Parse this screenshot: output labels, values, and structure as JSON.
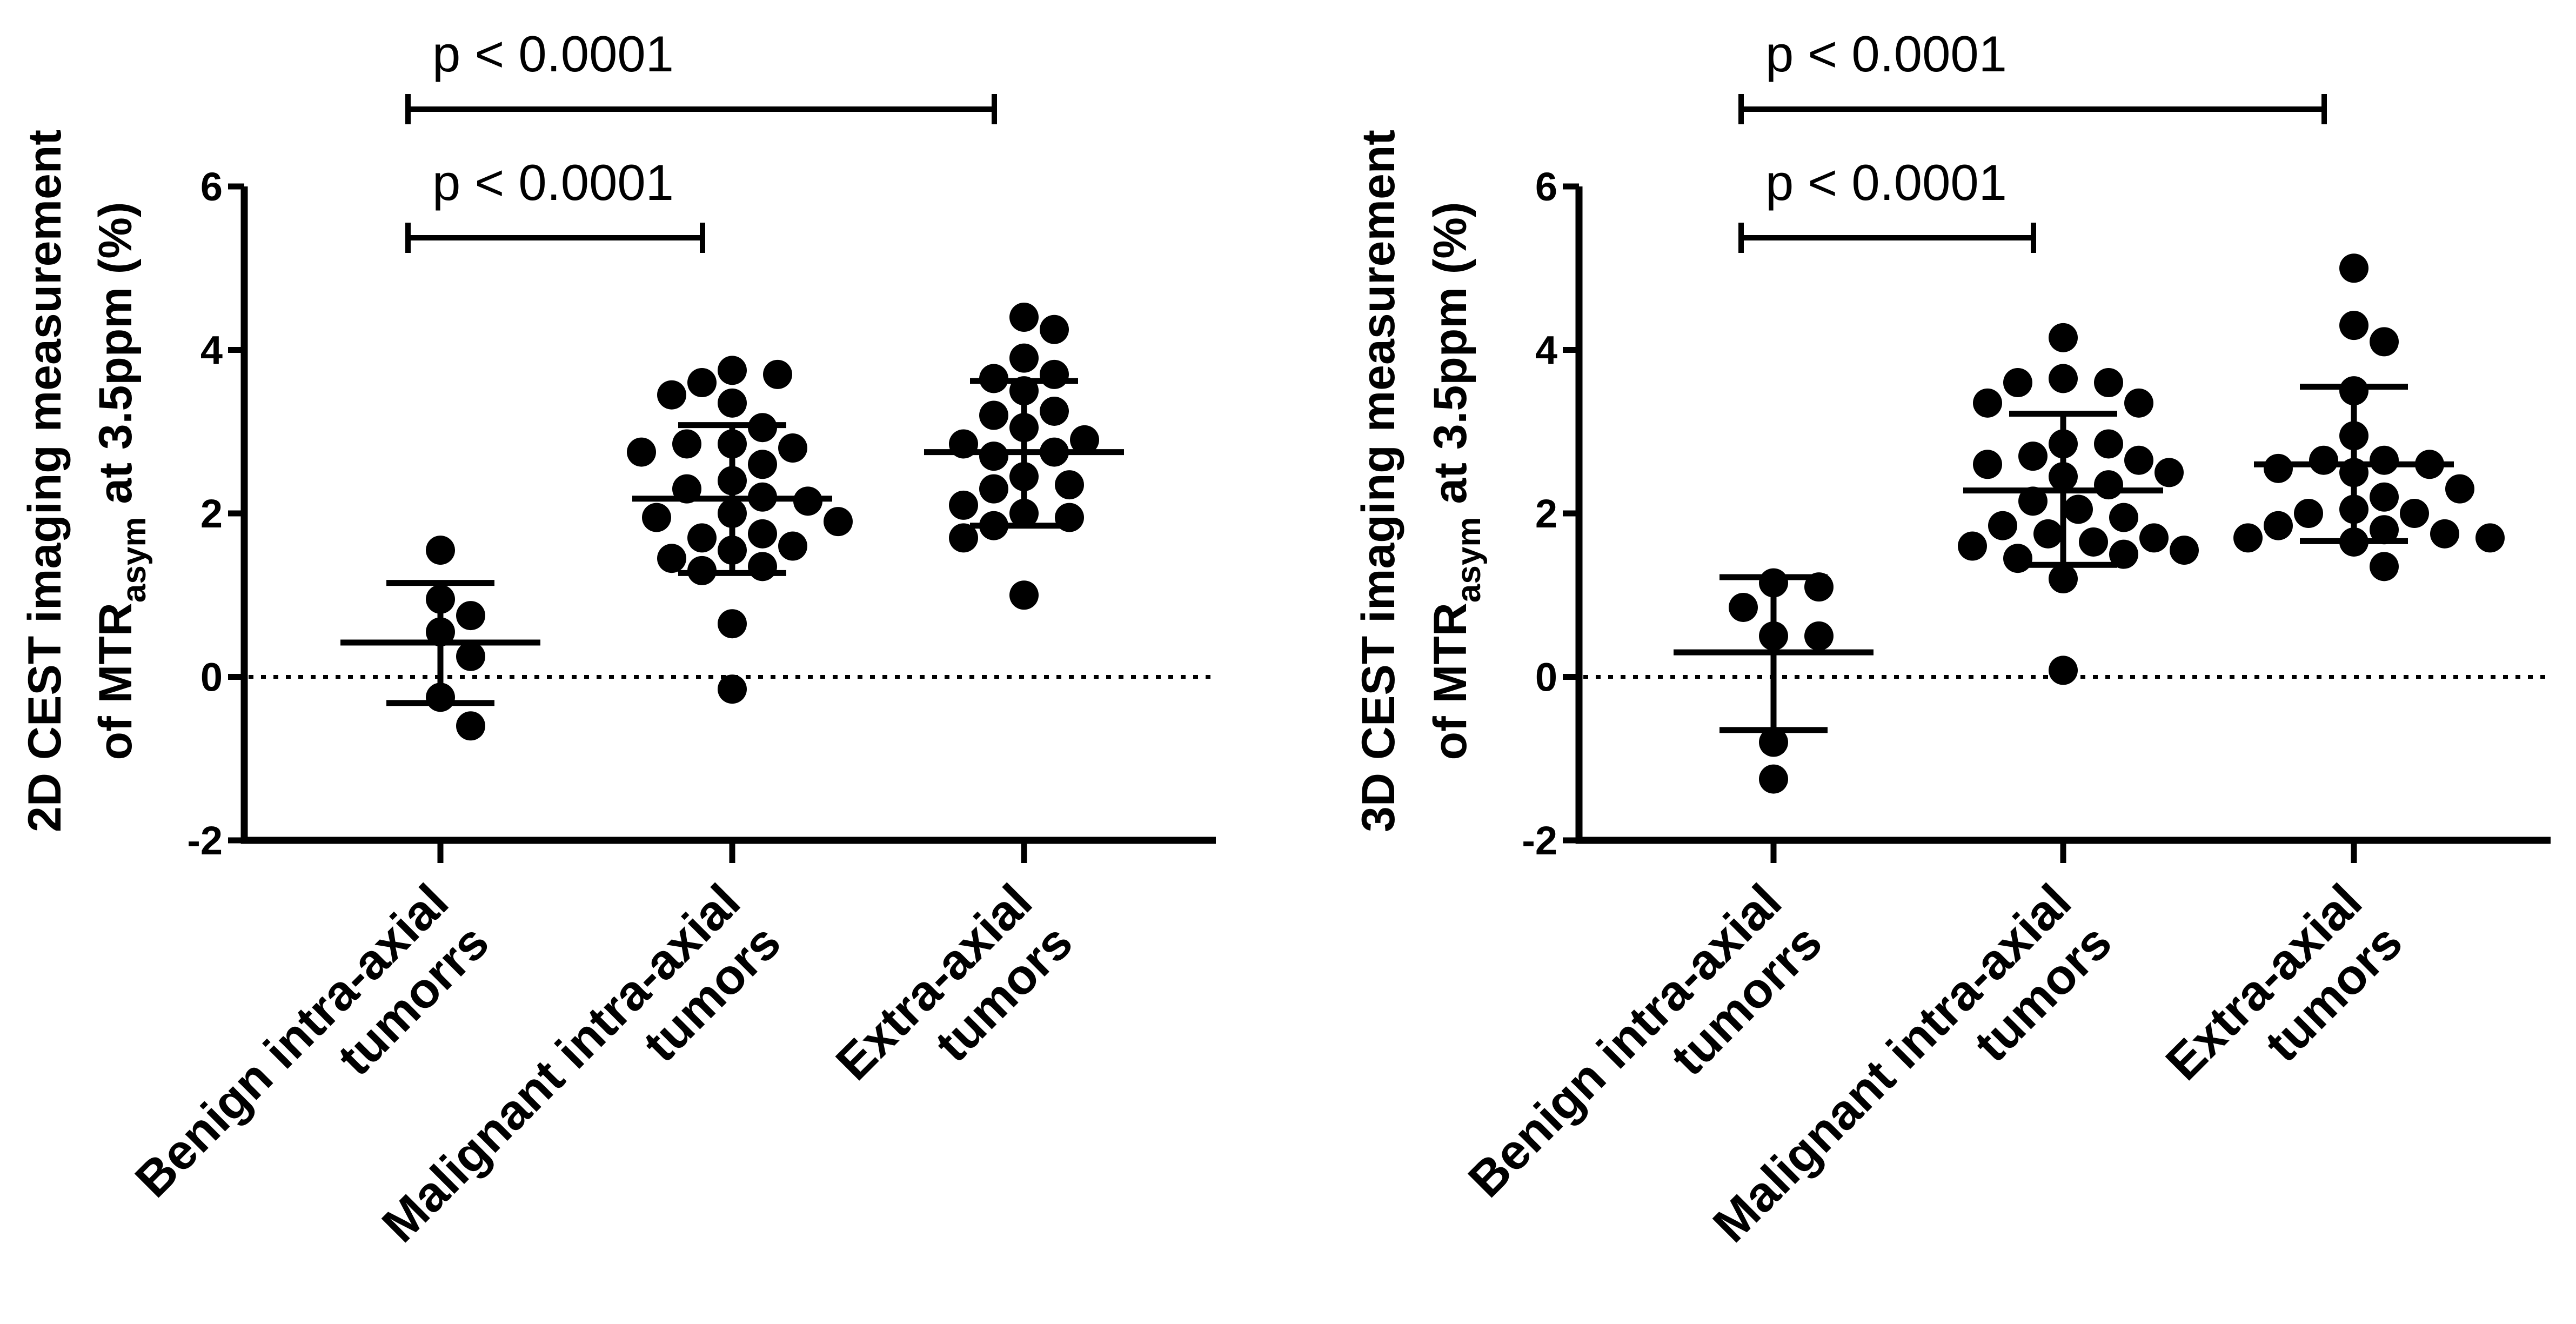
{
  "chart_data": [
    {
      "type": "scatter",
      "y_axis_title": {
        "line1": "2D CEST imaging measurement",
        "line2_prefix": "of MTR",
        "line2_subscript": "asym",
        "line2_suffix": " at 3.5ppm (%)"
      },
      "ylim": [
        -2,
        6
      ],
      "yticks": [
        "6",
        "4",
        "2",
        "0",
        "-2"
      ],
      "ytick_values": [
        6,
        4,
        2,
        0,
        -2
      ],
      "reference_line": 0,
      "categories": [
        {
          "line1": "Benign intra-axial",
          "line2": "tumorrs"
        },
        {
          "line1": "Malignant intra-axial",
          "line2": "tumors"
        },
        {
          "line1": "Extra-axial",
          "line2": "tumors"
        }
      ],
      "series": [
        {
          "points": [
            1.55,
            0.95,
            0.75,
            0.55,
            0.25,
            -0.25,
            -0.6
          ],
          "mean": 0.42,
          "sd_low": -0.32,
          "sd_high": 1.15
        },
        {
          "points": [
            3.75,
            3.7,
            3.6,
            3.45,
            3.35,
            3.05,
            2.85,
            2.85,
            2.8,
            2.75,
            2.6,
            2.4,
            2.3,
            2.2,
            2.15,
            2.0,
            1.95,
            1.9,
            1.75,
            1.7,
            1.6,
            1.55,
            1.45,
            1.35,
            1.3,
            0.65,
            -0.15
          ],
          "mean": 2.18,
          "sd_low": 1.27,
          "sd_high": 3.08
        },
        {
          "points": [
            4.4,
            4.25,
            3.9,
            3.7,
            3.65,
            3.5,
            3.25,
            3.2,
            3.05,
            2.9,
            2.85,
            2.75,
            2.7,
            2.45,
            2.35,
            2.3,
            2.1,
            2.0,
            1.95,
            1.85,
            1.7,
            1.0
          ],
          "mean": 2.75,
          "sd_low": 1.85,
          "sd_high": 3.62
        }
      ],
      "significance": [
        {
          "label": "p < 0.0001",
          "from": 0,
          "to": 2,
          "level": 2
        },
        {
          "label": "p < 0.0001",
          "from": 0,
          "to": 1,
          "level": 1
        }
      ]
    },
    {
      "type": "scatter",
      "y_axis_title": {
        "line1": "3D CEST imaging measurement",
        "line2_prefix": "of MTR",
        "line2_subscript": "asym",
        "line2_suffix": " at 3.5ppm (%)"
      },
      "ylim": [
        -2,
        6
      ],
      "yticks": [
        "6",
        "4",
        "2",
        "0",
        "-2"
      ],
      "ytick_values": [
        6,
        4,
        2,
        0,
        -2
      ],
      "reference_line": 0,
      "categories": [
        {
          "line1": "Benign intra-axial",
          "line2": "tumorrs"
        },
        {
          "line1": "Malignant intra-axial",
          "line2": "tumors"
        },
        {
          "line1": "Extra-axial",
          "line2": "tumors"
        }
      ],
      "series": [
        {
          "points": [
            1.15,
            1.1,
            0.85,
            0.5,
            0.5,
            -0.8,
            -1.25
          ],
          "mean": 0.3,
          "sd_low": -0.65,
          "sd_high": 1.22
        },
        {
          "points": [
            4.15,
            3.65,
            3.6,
            3.6,
            3.35,
            3.35,
            2.85,
            2.85,
            2.7,
            2.65,
            2.6,
            2.5,
            2.45,
            2.35,
            2.15,
            2.05,
            1.95,
            1.85,
            1.75,
            1.7,
            1.65,
            1.6,
            1.55,
            1.5,
            1.45,
            1.2,
            0.08
          ],
          "mean": 2.28,
          "sd_low": 1.37,
          "sd_high": 3.22
        },
        {
          "points": [
            5.0,
            4.3,
            4.1,
            3.5,
            2.95,
            2.65,
            2.65,
            2.6,
            2.55,
            2.5,
            2.3,
            2.2,
            2.05,
            2.0,
            2.0,
            1.85,
            1.8,
            1.75,
            1.7,
            1.7,
            1.65,
            1.35
          ],
          "mean": 2.6,
          "sd_low": 1.66,
          "sd_high": 3.55
        }
      ],
      "significance": [
        {
          "label": "p < 0.0001",
          "from": 0,
          "to": 2,
          "level": 2
        },
        {
          "label": "p < 0.0001",
          "from": 0,
          "to": 1,
          "level": 1
        }
      ]
    }
  ]
}
